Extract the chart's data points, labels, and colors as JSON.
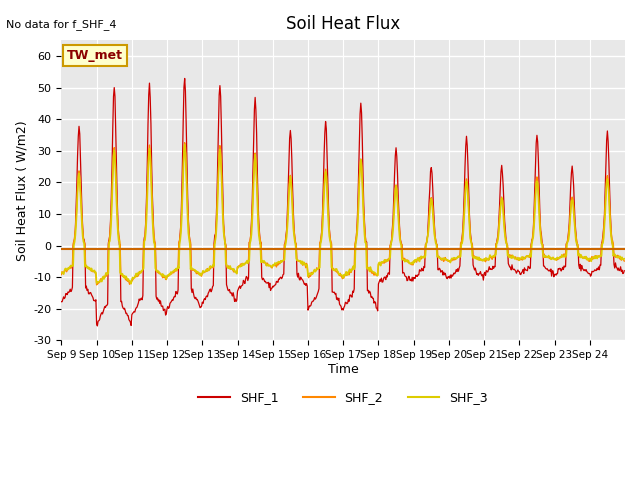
{
  "title": "Soil Heat Flux",
  "ylabel": "Soil Heat Flux ( W/m2)",
  "xlabel": "Time",
  "top_left_text": "No data for f_SHF_4",
  "legend_label": "TW_met",
  "ylim": [
    -30,
    65
  ],
  "yticks": [
    -30,
    -20,
    -10,
    0,
    10,
    20,
    30,
    40,
    50,
    60
  ],
  "xtick_labels": [
    "Sep 9",
    "Sep 10",
    "Sep 11",
    "Sep 12",
    "Sep 13",
    "Sep 14",
    "Sep 15",
    "Sep 16",
    "Sep 17",
    "Sep 18",
    "Sep 19",
    "Sep 20",
    "Sep 21",
    "Sep 22",
    "Sep 23",
    "Sep 24"
  ],
  "colors": {
    "SHF_1": "#cc0000",
    "SHF_2": "#ff8800",
    "SHF_3": "#ddcc00",
    "zero_line": "#cc6600",
    "background": "#e8e8e8",
    "tw_met_bg": "#ffffcc",
    "tw_met_border": "#cc9900"
  },
  "series_labels": [
    "SHF_1",
    "SHF_2",
    "SHF_3"
  ],
  "amp1": [
    38,
    50,
    51,
    53,
    51,
    47,
    36,
    39,
    45,
    31,
    25,
    34,
    25,
    35,
    25,
    36
  ],
  "night1": [
    -18,
    -25,
    -22,
    -20,
    -18,
    -14,
    -13,
    -20,
    -20,
    -12,
    -10,
    -10,
    -9,
    -9,
    -9,
    -9
  ]
}
